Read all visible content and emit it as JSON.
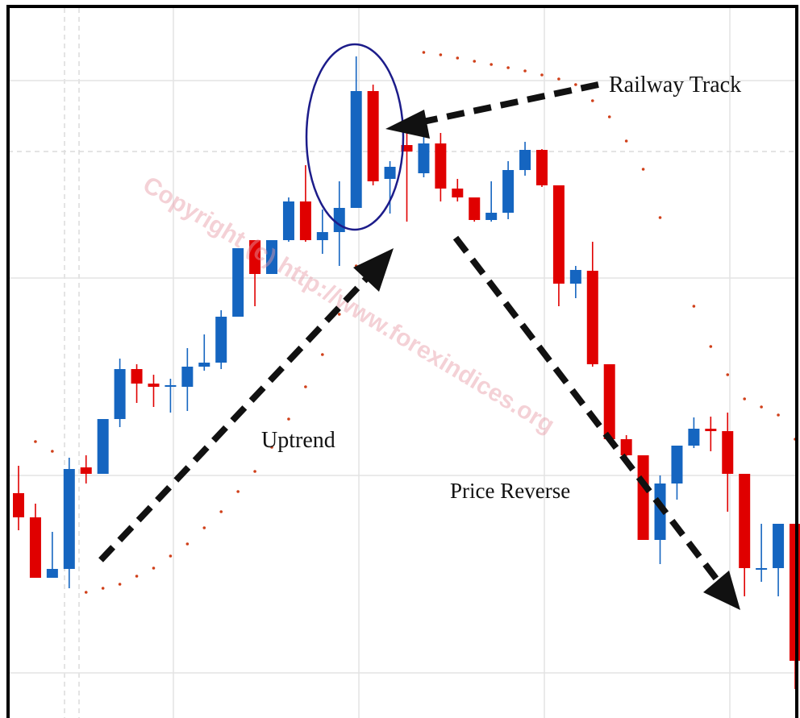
{
  "chart_data": {
    "type": "candlestick",
    "annotations": [
      "Railway Track",
      "Uptrend",
      "Price Reverse"
    ],
    "watermark": "Copyright (c) http://www.forexindices.org",
    "up_color": "#1565c0",
    "down_color": "#e00000",
    "sar_color": "#d0401a",
    "ylim": [
      0,
      891
    ],
    "grid": true,
    "open": [
      279,
      249,
      174,
      185,
      311,
      303,
      371,
      433,
      415,
      411,
      411,
      436,
      441,
      498,
      593,
      551,
      593,
      641,
      593,
      603,
      633,
      778,
      669,
      711,
      676,
      713,
      657,
      646,
      618,
      627,
      680,
      705,
      661,
      539,
      555,
      439,
      346,
      326,
      221,
      291,
      338,
      359,
      356,
      303,
      184,
      186,
      241
    ],
    "high": [
      313,
      266,
      231,
      323,
      326,
      371,
      446,
      439,
      426,
      421,
      459,
      476,
      506,
      583,
      593,
      593,
      646,
      686,
      631,
      666,
      821,
      786,
      691,
      726,
      731,
      726,
      669,
      646,
      666,
      691,
      715,
      706,
      661,
      561,
      591,
      439,
      351,
      326,
      301,
      338,
      373,
      374,
      379,
      303,
      241,
      241,
      241
    ],
    "low": [
      233,
      174,
      174,
      161,
      291,
      303,
      361,
      391,
      386,
      379,
      381,
      431,
      433,
      498,
      511,
      551,
      591,
      591,
      576,
      561,
      633,
      661,
      626,
      616,
      671,
      641,
      641,
      616,
      616,
      619,
      673,
      659,
      511,
      521,
      436,
      346,
      316,
      221,
      191,
      271,
      335,
      331,
      256,
      151,
      169,
      151,
      36
    ],
    "close": [
      249,
      174,
      185,
      309,
      303,
      371,
      433,
      415,
      411,
      413,
      436,
      441,
      498,
      583,
      551,
      593,
      641,
      593,
      603,
      633,
      778,
      666,
      684,
      703,
      713,
      657,
      646,
      618,
      627,
      680,
      705,
      661,
      539,
      556,
      439,
      346,
      326,
      221,
      291,
      338,
      359,
      356,
      303,
      186,
      186,
      241,
      71
    ],
    "sar": [
      null,
      343,
      331,
      null,
      156,
      161,
      166,
      176,
      186,
      201,
      216,
      236,
      256,
      281,
      306,
      336,
      371,
      411,
      451,
      501,
      561,
      null,
      null,
      null,
      826,
      823,
      819,
      815,
      811,
      807,
      803,
      798,
      793,
      786,
      766,
      746,
      716,
      681,
      621,
      null,
      511,
      461,
      426,
      396,
      386,
      376,
      346
    ]
  }
}
